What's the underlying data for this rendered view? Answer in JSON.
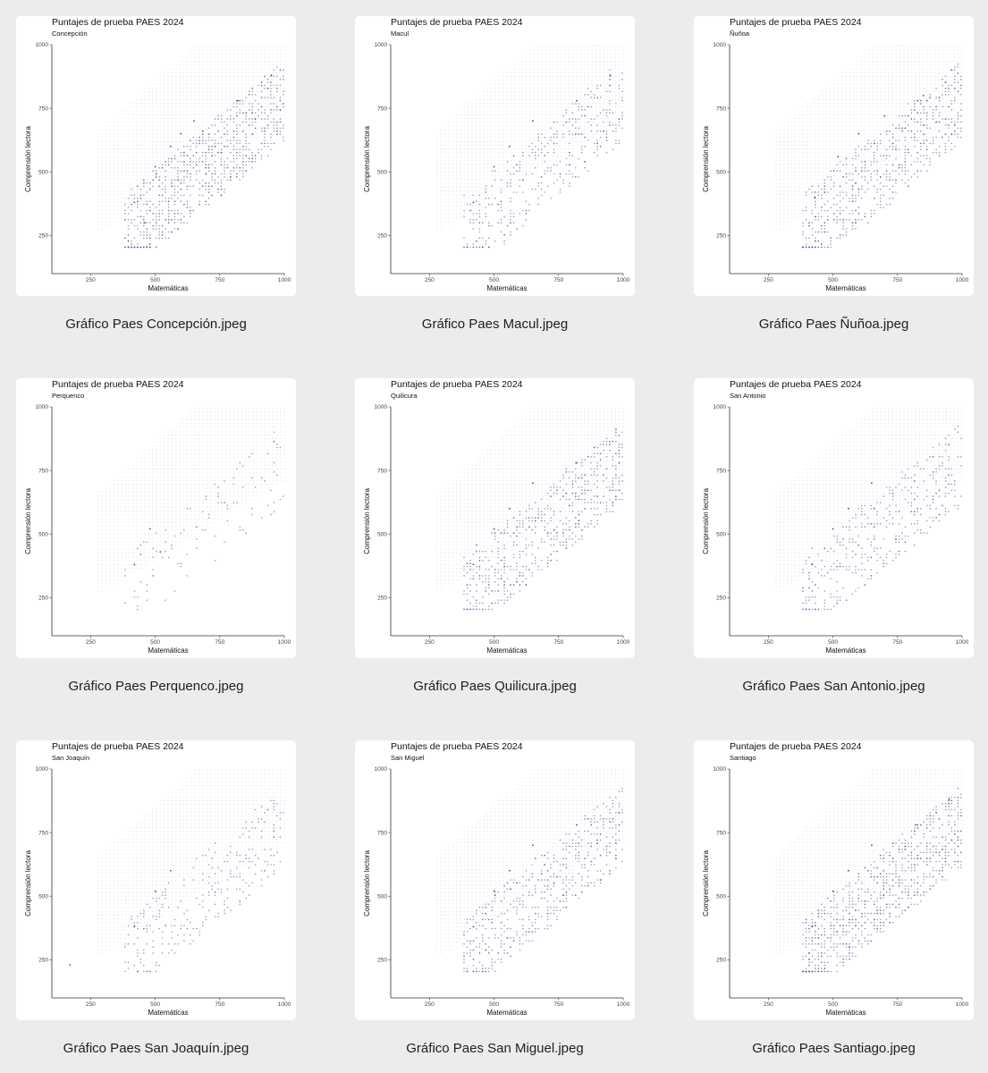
{
  "gallery": {
    "items": [
      {
        "caption": "Gráfico Paes Concepción.jpeg",
        "chart_index": 0
      },
      {
        "caption": "Gráfico Paes Macul.jpeg",
        "chart_index": 1
      },
      {
        "caption": "Gráfico Paes Ñuñoa.jpeg",
        "chart_index": 2
      },
      {
        "caption": "Gráfico Paes Perquenco.jpeg",
        "chart_index": 3
      },
      {
        "caption": "Gráfico Paes Quilicura.jpeg",
        "chart_index": 4
      },
      {
        "caption": "Gráfico Paes San Antonio.jpeg",
        "chart_index": 5
      },
      {
        "caption": "Gráfico Paes San Joaquín.jpeg",
        "chart_index": 6
      },
      {
        "caption": "Gráfico Paes San Miguel.jpeg",
        "chart_index": 7
      },
      {
        "caption": "Gráfico Paes Santiago.jpeg",
        "chart_index": 8
      }
    ]
  },
  "colors": {
    "background": "#ececec",
    "card": "#ffffff",
    "point": "#5b3a8c"
  },
  "chart_data": [
    {
      "type": "scatter",
      "title": "Puntajes de prueba PAES 2024",
      "subtitle": "Concepción",
      "xlabel": "Matemáticas",
      "ylabel": "Comprensión lectora",
      "xlim": [
        100,
        1000
      ],
      "ylim": [
        100,
        1000
      ],
      "x_ticks": [
        250,
        500,
        750,
        1000
      ],
      "y_ticks": [
        250,
        500,
        750,
        1000
      ],
      "grid": false,
      "density": 0.95,
      "points_sample": [
        [
          420,
          380
        ],
        [
          500,
          520
        ],
        [
          560,
          600
        ],
        [
          650,
          700
        ],
        [
          820,
          780
        ],
        [
          950,
          880
        ],
        [
          460,
          300
        ],
        [
          600,
          650
        ]
      ]
    },
    {
      "type": "scatter",
      "title": "Puntajes de prueba PAES 2024",
      "subtitle": "Macul",
      "xlabel": "Matemáticas",
      "ylabel": "Comprensión lectora",
      "xlim": [
        100,
        1000
      ],
      "ylim": [
        100,
        1000
      ],
      "x_ticks": [
        250,
        500,
        750,
        1000
      ],
      "y_ticks": [
        250,
        500,
        750,
        1000
      ],
      "grid": false,
      "density": 0.45,
      "points_sample": [
        [
          420,
          380
        ],
        [
          500,
          520
        ],
        [
          560,
          600
        ],
        [
          650,
          700
        ],
        [
          820,
          780
        ],
        [
          950,
          880
        ]
      ]
    },
    {
      "type": "scatter",
      "title": "Puntajes de prueba PAES 2024",
      "subtitle": "Ñuñoa",
      "xlabel": "Matemáticas",
      "ylabel": "Comprensión lectora",
      "xlim": [
        100,
        1000
      ],
      "ylim": [
        100,
        1000
      ],
      "x_ticks": [
        250,
        500,
        750,
        1000
      ],
      "y_ticks": [
        250,
        500,
        750,
        1000
      ],
      "grid": false,
      "density": 0.75,
      "points_sample": [
        [
          430,
          400
        ],
        [
          520,
          560
        ],
        [
          600,
          650
        ],
        [
          700,
          720
        ],
        [
          850,
          800
        ],
        [
          960,
          900
        ]
      ]
    },
    {
      "type": "scatter",
      "title": "Puntajes de prueba PAES 2024",
      "subtitle": "Perquenco",
      "xlabel": "Matemáticas",
      "ylabel": "Comprensión lectora",
      "xlim": [
        100,
        1000
      ],
      "ylim": [
        100,
        1000
      ],
      "x_ticks": [
        250,
        500,
        750,
        1000
      ],
      "y_ticks": [
        250,
        500,
        750,
        1000
      ],
      "grid": false,
      "density": 0.12,
      "points_sample": [
        [
          420,
          380
        ],
        [
          480,
          520
        ],
        [
          520,
          430
        ]
      ]
    },
    {
      "type": "scatter",
      "title": "Puntajes de prueba PAES 2024",
      "subtitle": "Quilicura",
      "xlabel": "Matemáticas",
      "ylabel": "Comprensión lectora",
      "xlim": [
        100,
        1000
      ],
      "ylim": [
        100,
        1000
      ],
      "x_ticks": [
        250,
        500,
        750,
        1000
      ],
      "y_ticks": [
        250,
        500,
        750,
        1000
      ],
      "grid": false,
      "density": 0.7,
      "points_sample": [
        [
          420,
          380
        ],
        [
          500,
          520
        ],
        [
          560,
          600
        ],
        [
          650,
          700
        ],
        [
          820,
          780
        ]
      ]
    },
    {
      "type": "scatter",
      "title": "Puntajes de prueba PAES 2024",
      "subtitle": "San Antonio",
      "xlabel": "Matemáticas",
      "ylabel": "Comprensión lectora",
      "xlim": [
        100,
        1000
      ],
      "ylim": [
        100,
        1000
      ],
      "x_ticks": [
        250,
        500,
        750,
        1000
      ],
      "y_ticks": [
        250,
        500,
        750,
        1000
      ],
      "grid": false,
      "density": 0.45,
      "points_sample": [
        [
          420,
          380
        ],
        [
          500,
          520
        ],
        [
          560,
          600
        ],
        [
          650,
          700
        ]
      ]
    },
    {
      "type": "scatter",
      "title": "Puntajes de prueba PAES 2024",
      "subtitle": "San Joaquín",
      "xlabel": "Matemáticas",
      "ylabel": "Comprensión lectora",
      "xlim": [
        100,
        1000
      ],
      "ylim": [
        100,
        1000
      ],
      "x_ticks": [
        250,
        500,
        750,
        1000
      ],
      "y_ticks": [
        250,
        500,
        750,
        1000
      ],
      "grid": false,
      "density": 0.3,
      "points_sample": [
        [
          420,
          380
        ],
        [
          500,
          520
        ],
        [
          560,
          600
        ],
        [
          170,
          230
        ]
      ]
    },
    {
      "type": "scatter",
      "title": "Puntajes de prueba PAES 2024",
      "subtitle": "San Miguel",
      "xlabel": "Matemáticas",
      "ylabel": "Comprensión lectora",
      "xlim": [
        100,
        1000
      ],
      "ylim": [
        100,
        1000
      ],
      "x_ticks": [
        250,
        500,
        750,
        1000
      ],
      "y_ticks": [
        250,
        500,
        750,
        1000
      ],
      "grid": false,
      "density": 0.6,
      "points_sample": [
        [
          420,
          380
        ],
        [
          500,
          520
        ],
        [
          560,
          600
        ],
        [
          650,
          700
        ],
        [
          820,
          780
        ]
      ]
    },
    {
      "type": "scatter",
      "title": "Puntajes de prueba PAES 2024",
      "subtitle": "Santiago",
      "xlabel": "Matemáticas",
      "ylabel": "Comprensión lectora",
      "xlim": [
        100,
        1000
      ],
      "ylim": [
        100,
        1000
      ],
      "x_ticks": [
        250,
        500,
        750,
        1000
      ],
      "y_ticks": [
        250,
        500,
        750,
        1000
      ],
      "grid": false,
      "density": 0.95,
      "points_sample": [
        [
          420,
          380
        ],
        [
          500,
          520
        ],
        [
          560,
          600
        ],
        [
          650,
          700
        ],
        [
          820,
          780
        ],
        [
          950,
          880
        ]
      ]
    }
  ]
}
